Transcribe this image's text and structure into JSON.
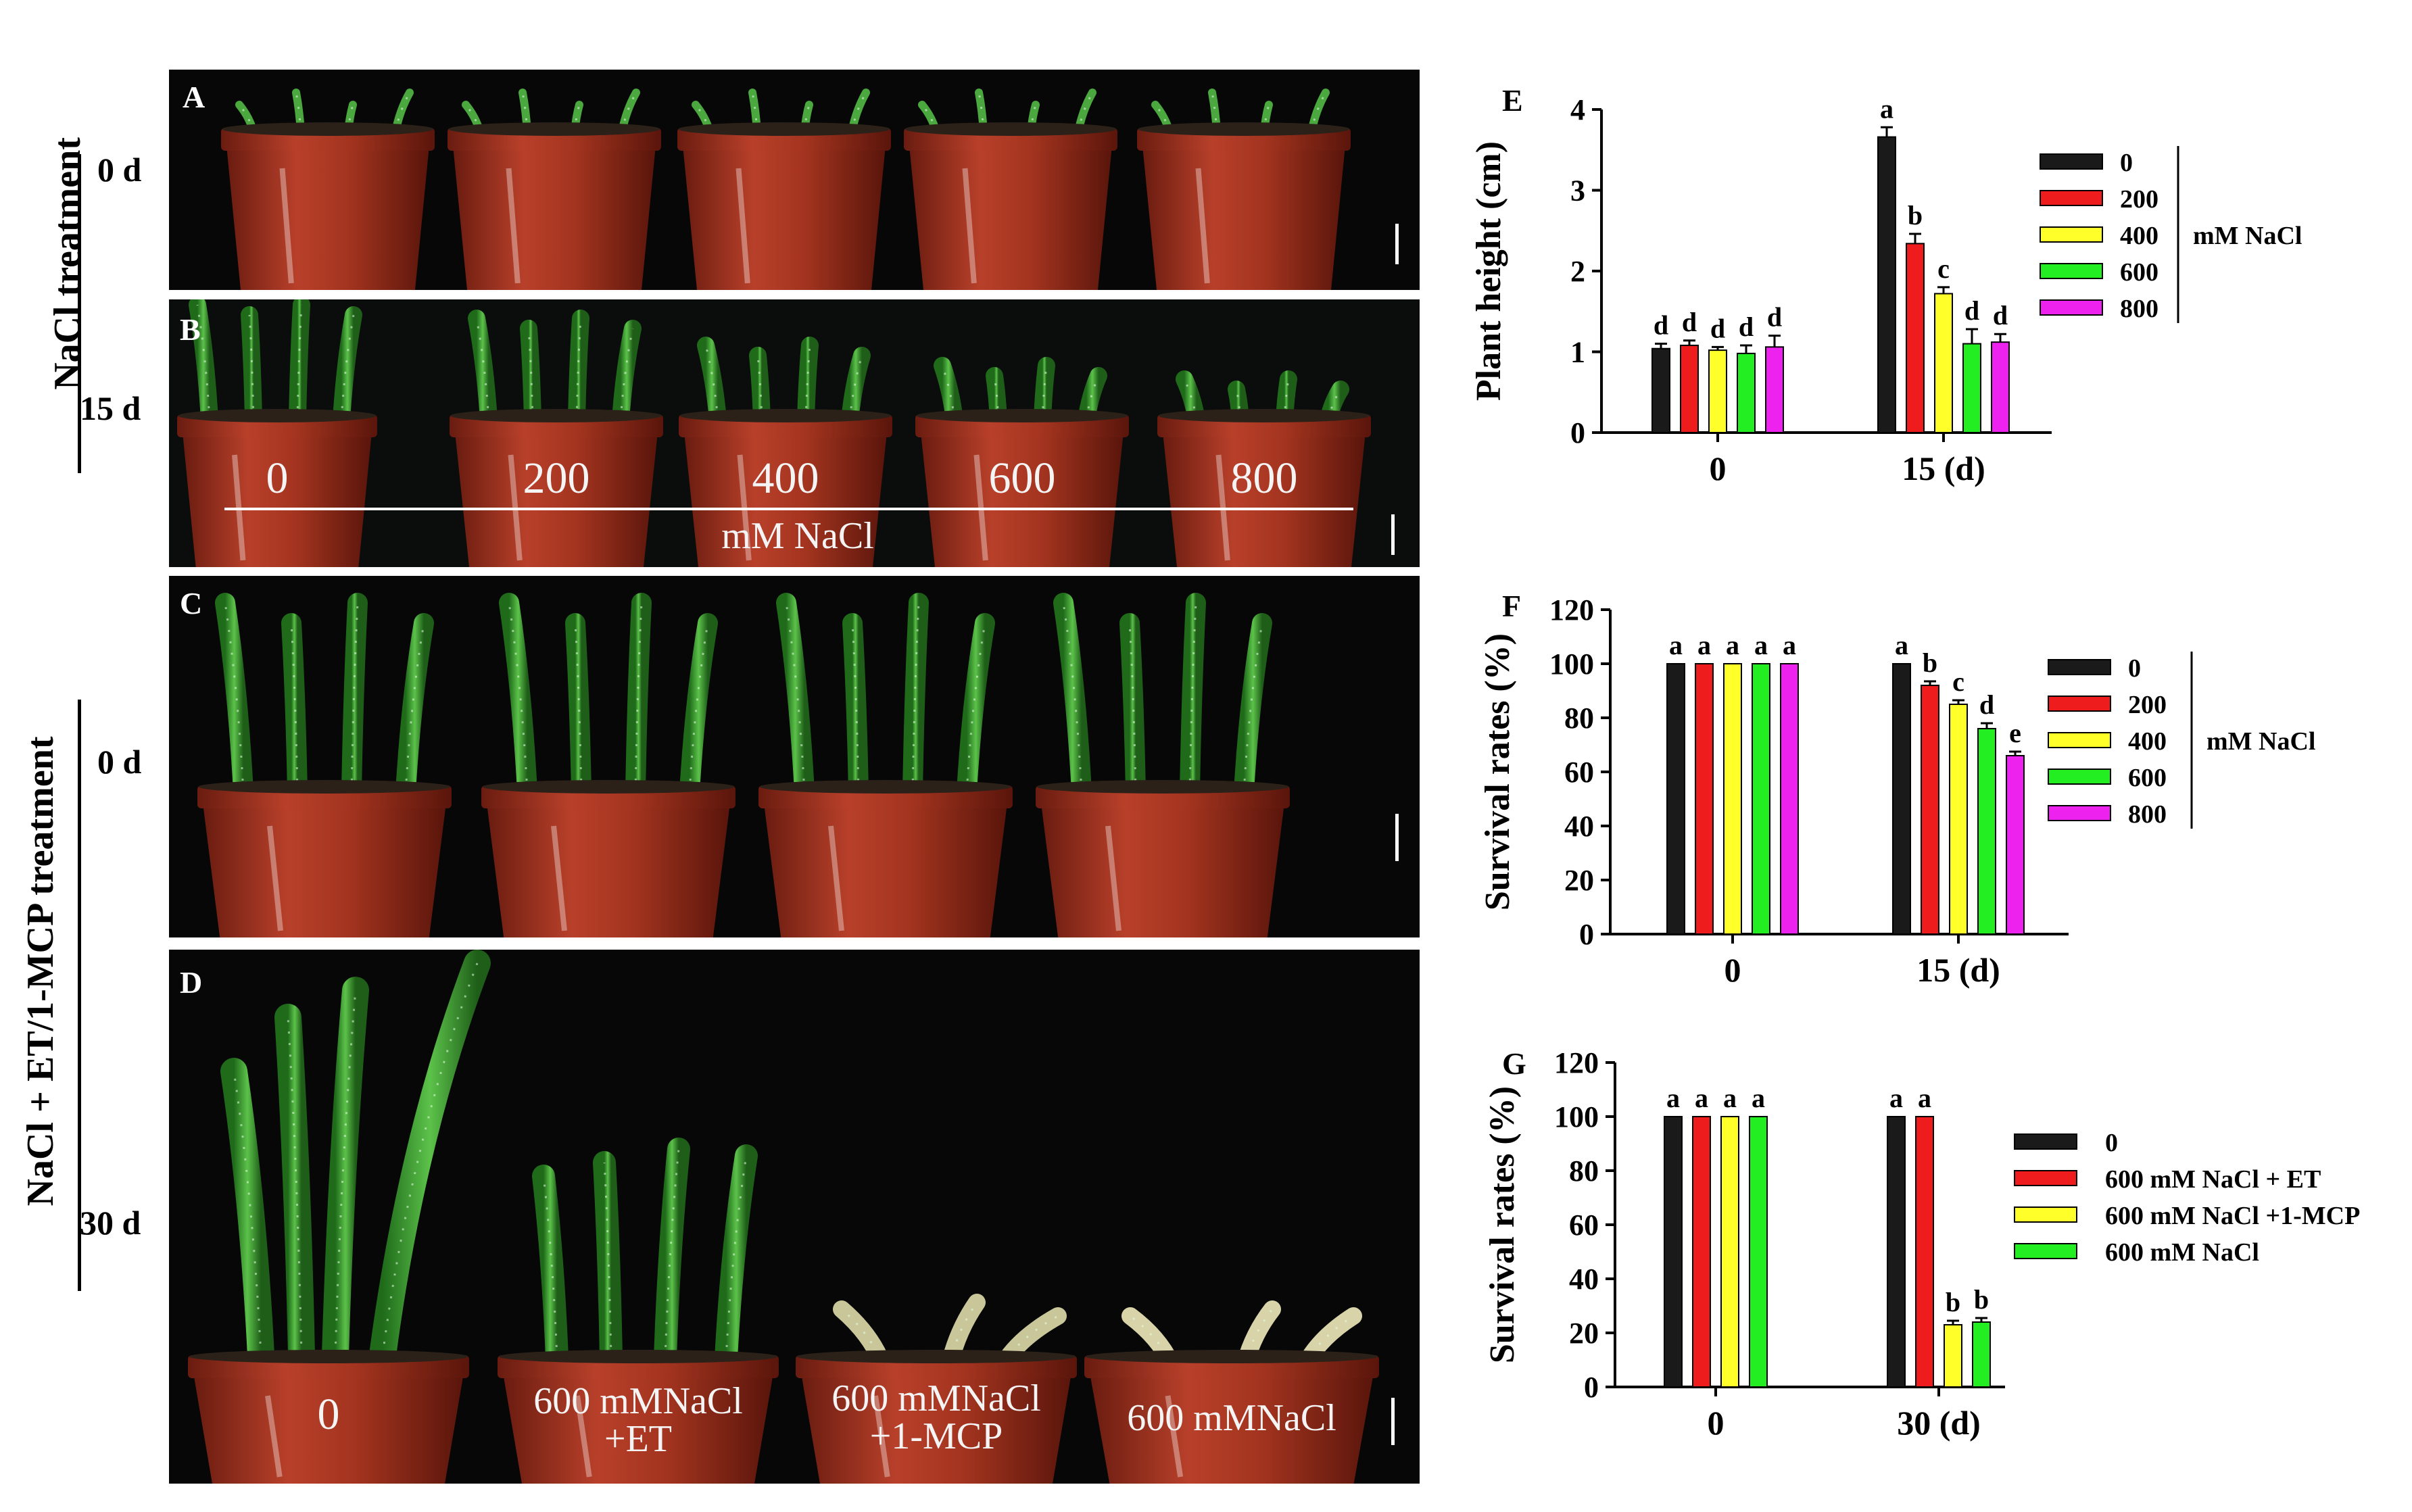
{
  "side_labels": {
    "nacl_treatment": "NaCl treatment",
    "combo_treatment": "NaCl + ET/1-MCP treatment",
    "day_a": "0 d",
    "day_b": "15 d",
    "day_c": "0 d",
    "day_d": "30 d"
  },
  "photos": {
    "A": {
      "letter": "A"
    },
    "B": {
      "letter": "B",
      "pot_labels": [
        "0",
        "200",
        "400",
        "600",
        "800"
      ],
      "unit": "mM NaCl"
    },
    "C": {
      "letter": "C"
    },
    "D": {
      "letter": "D",
      "pot_labels": [
        "0",
        "600 mMNaCl\n+ET",
        "600 mMNaCl\n+1-MCP",
        "600 mMNaCl"
      ]
    }
  },
  "colors": {
    "c0": "#1a1a1a",
    "c200": "#ee1c1c",
    "c400": "#ffff2a",
    "c600": "#22ee22",
    "c800": "#ee22ee"
  },
  "chart_data": [
    {
      "id": "E",
      "type": "bar",
      "ylabel": "Plant height (cm)",
      "ylim": [
        0,
        4
      ],
      "yticks": [
        0,
        1,
        2,
        3,
        4
      ],
      "categories": [
        "0",
        "15 (d)"
      ],
      "legend_title": "mM NaCl",
      "series": [
        {
          "name": "0",
          "values": [
            1.04,
            3.66
          ],
          "errors": [
            0.06,
            0.12
          ],
          "letters": [
            "d",
            "a"
          ]
        },
        {
          "name": "200",
          "values": [
            1.08,
            2.34
          ],
          "errors": [
            0.06,
            0.12
          ],
          "letters": [
            "d",
            "b"
          ]
        },
        {
          "name": "400",
          "values": [
            1.02,
            1.72
          ],
          "errors": [
            0.04,
            0.08
          ],
          "letters": [
            "d",
            "c"
          ]
        },
        {
          "name": "600",
          "values": [
            0.98,
            1.1
          ],
          "errors": [
            0.1,
            0.18
          ],
          "letters": [
            "d",
            "d"
          ]
        },
        {
          "name": "800",
          "values": [
            1.06,
            1.12
          ],
          "errors": [
            0.14,
            0.1
          ],
          "letters": [
            "d",
            "d"
          ]
        }
      ]
    },
    {
      "id": "F",
      "type": "bar",
      "ylabel": "Survival rates (%)",
      "ylim": [
        0,
        120
      ],
      "yticks": [
        0,
        20,
        40,
        60,
        80,
        100,
        120
      ],
      "categories": [
        "0",
        "15 (d)"
      ],
      "legend_title": "mM NaCl",
      "series": [
        {
          "name": "0",
          "values": [
            100,
            100
          ],
          "errors": [
            0,
            0
          ],
          "letters": [
            "a",
            "a"
          ]
        },
        {
          "name": "200",
          "values": [
            100,
            92
          ],
          "errors": [
            0,
            1.5
          ],
          "letters": [
            "a",
            "b"
          ]
        },
        {
          "name": "400",
          "values": [
            100,
            85
          ],
          "errors": [
            0,
            1.5
          ],
          "letters": [
            "a",
            "c"
          ]
        },
        {
          "name": "600",
          "values": [
            100,
            76
          ],
          "errors": [
            0,
            2
          ],
          "letters": [
            "a",
            "d"
          ]
        },
        {
          "name": "800",
          "values": [
            100,
            66
          ],
          "errors": [
            0,
            1.5
          ],
          "letters": [
            "a",
            "e"
          ]
        }
      ]
    },
    {
      "id": "G",
      "type": "bar",
      "ylabel": "Survival rates (%)",
      "ylim": [
        0,
        120
      ],
      "yticks": [
        0,
        20,
        40,
        60,
        80,
        100,
        120
      ],
      "categories": [
        "0",
        "30 (d)"
      ],
      "legend_title": "",
      "series": [
        {
          "name": "0",
          "values": [
            100,
            100
          ],
          "errors": [
            0,
            0
          ],
          "letters": [
            "a",
            "a"
          ]
        },
        {
          "name": "600 mM NaCl + ET",
          "values": [
            100,
            100
          ],
          "errors": [
            0,
            0
          ],
          "letters": [
            "a",
            "a"
          ]
        },
        {
          "name": "600 mM NaCl +1-MCP",
          "values": [
            100,
            23
          ],
          "errors": [
            0,
            1.5
          ],
          "letters": [
            "a",
            "b"
          ]
        },
        {
          "name": "600 mM NaCl",
          "values": [
            100,
            24
          ],
          "errors": [
            0,
            1.5
          ],
          "letters": [
            "a",
            "b"
          ]
        }
      ]
    }
  ]
}
